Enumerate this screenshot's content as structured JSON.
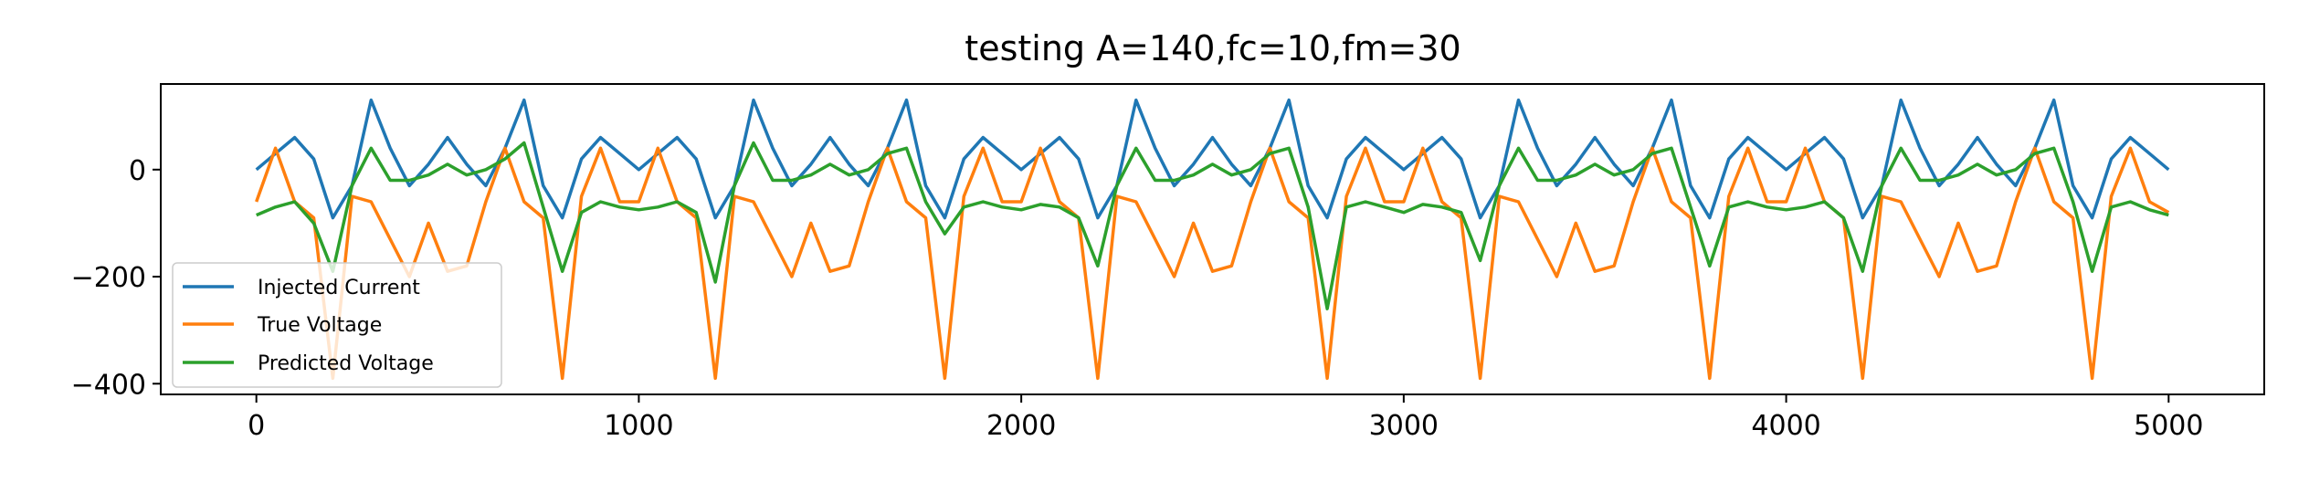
{
  "chart_data": {
    "type": "line",
    "title": "testing A=140,fc=10,fm=30",
    "xlabel": "",
    "ylabel": "",
    "xlim": [
      -250,
      5250
    ],
    "ylim": [
      -420,
      160
    ],
    "xticks": [
      0,
      1000,
      2000,
      3000,
      4000,
      5000
    ],
    "xtick_labels": [
      "0",
      "1000",
      "2000",
      "3000",
      "4000",
      "5000"
    ],
    "yticks": [
      0,
      -200,
      -400
    ],
    "ytick_labels": [
      "0",
      "−200",
      "−400"
    ],
    "grid": false,
    "legend_position": "lower-left",
    "series": [
      {
        "name": "Injected Current",
        "color": "#1f77b4",
        "x": [
          0,
          50,
          100,
          150,
          200,
          250,
          300,
          350,
          400,
          450,
          500,
          550,
          600,
          650,
          700,
          750,
          800,
          850,
          900,
          950,
          1000,
          1050,
          1100,
          1150,
          1200,
          1250,
          1300,
          1350,
          1400,
          1450,
          1500,
          1550,
          1600,
          1650,
          1700,
          1750,
          1800,
          1850,
          1900,
          1950,
          2000,
          2050,
          2100,
          2150,
          2200,
          2250,
          2300,
          2350,
          2400,
          2450,
          2500,
          2550,
          2600,
          2650,
          2700,
          2750,
          2800,
          2850,
          2900,
          2950,
          3000,
          3050,
          3100,
          3150,
          3200,
          3250,
          3300,
          3350,
          3400,
          3450,
          3500,
          3550,
          3600,
          3650,
          3700,
          3750,
          3800,
          3850,
          3900,
          3950,
          4000,
          4050,
          4100,
          4150,
          4200,
          4250,
          4300,
          4350,
          4400,
          4450,
          4500,
          4550,
          4600,
          4650,
          4700,
          4750,
          4800,
          4850,
          4900,
          4950,
          5000
        ],
        "y": [
          0,
          30,
          60,
          20,
          -90,
          -30,
          130,
          40,
          -30,
          10,
          60,
          10,
          -30,
          40,
          130,
          -30,
          -90,
          20,
          60,
          30,
          0,
          30,
          60,
          20,
          -90,
          -30,
          130,
          40,
          -30,
          10,
          60,
          10,
          -30,
          40,
          130,
          -30,
          -90,
          20,
          60,
          30,
          0,
          30,
          60,
          20,
          -90,
          -30,
          130,
          40,
          -30,
          10,
          60,
          10,
          -30,
          40,
          130,
          -30,
          -90,
          20,
          60,
          30,
          0,
          30,
          60,
          20,
          -90,
          -30,
          130,
          40,
          -30,
          10,
          60,
          10,
          -30,
          40,
          130,
          -30,
          -90,
          20,
          60,
          30,
          0,
          30,
          60,
          20,
          -90,
          -30,
          130,
          40,
          -30,
          10,
          60,
          10,
          -30,
          40,
          130,
          -30,
          -90,
          20,
          60,
          30,
          0
        ]
      },
      {
        "name": "True Voltage",
        "color": "#ff7f0e",
        "x": [
          0,
          50,
          100,
          150,
          200,
          250,
          300,
          350,
          400,
          450,
          500,
          550,
          600,
          650,
          700,
          750,
          800,
          850,
          900,
          950,
          1000,
          1050,
          1100,
          1150,
          1200,
          1250,
          1300,
          1350,
          1400,
          1450,
          1500,
          1550,
          1600,
          1650,
          1700,
          1750,
          1800,
          1850,
          1900,
          1950,
          2000,
          2050,
          2100,
          2150,
          2200,
          2250,
          2300,
          2350,
          2400,
          2450,
          2500,
          2550,
          2600,
          2650,
          2700,
          2750,
          2800,
          2850,
          2900,
          2950,
          3000,
          3050,
          3100,
          3150,
          3200,
          3250,
          3300,
          3350,
          3400,
          3450,
          3500,
          3550,
          3600,
          3650,
          3700,
          3750,
          3800,
          3850,
          3900,
          3950,
          4000,
          4050,
          4100,
          4150,
          4200,
          4250,
          4300,
          4350,
          4400,
          4450,
          4500,
          4550,
          4600,
          4650,
          4700,
          4750,
          4800,
          4850,
          4900,
          4950,
          5000
        ],
        "y": [
          -60,
          40,
          -60,
          -90,
          -390,
          -50,
          -60,
          -130,
          -200,
          -100,
          -190,
          -180,
          -60,
          40,
          -60,
          -90,
          -390,
          -50,
          40,
          -60,
          -60,
          40,
          -60,
          -90,
          -390,
          -50,
          -60,
          -130,
          -200,
          -100,
          -190,
          -180,
          -60,
          40,
          -60,
          -90,
          -390,
          -50,
          40,
          -60,
          -60,
          40,
          -60,
          -90,
          -390,
          -50,
          -60,
          -130,
          -200,
          -100,
          -190,
          -180,
          -60,
          40,
          -60,
          -90,
          -390,
          -50,
          40,
          -60,
          -60,
          40,
          -60,
          -90,
          -390,
          -50,
          -60,
          -130,
          -200,
          -100,
          -190,
          -180,
          -60,
          40,
          -60,
          -90,
          -390,
          -50,
          40,
          -60,
          -60,
          40,
          -60,
          -90,
          -390,
          -50,
          -60,
          -130,
          -200,
          -100,
          -190,
          -180,
          -60,
          40,
          -60,
          -90,
          -390,
          -50,
          40,
          -60,
          -80
        ]
      },
      {
        "name": "Predicted Voltage",
        "color": "#2ca02c",
        "x": [
          0,
          50,
          100,
          150,
          200,
          250,
          300,
          350,
          400,
          450,
          500,
          550,
          600,
          650,
          700,
          750,
          800,
          850,
          900,
          950,
          1000,
          1050,
          1100,
          1150,
          1200,
          1250,
          1300,
          1350,
          1400,
          1450,
          1500,
          1550,
          1600,
          1650,
          1700,
          1750,
          1800,
          1850,
          1900,
          1950,
          2000,
          2050,
          2100,
          2150,
          2200,
          2250,
          2300,
          2350,
          2400,
          2450,
          2500,
          2550,
          2600,
          2650,
          2700,
          2750,
          2800,
          2850,
          2900,
          2950,
          3000,
          3050,
          3100,
          3150,
          3200,
          3250,
          3300,
          3350,
          3400,
          3450,
          3500,
          3550,
          3600,
          3650,
          3700,
          3750,
          3800,
          3850,
          3900,
          3950,
          4000,
          4050,
          4100,
          4150,
          4200,
          4250,
          4300,
          4350,
          4400,
          4450,
          4500,
          4550,
          4600,
          4650,
          4700,
          4750,
          4800,
          4850,
          4900,
          4950,
          5000
        ],
        "y": [
          -85,
          -70,
          -60,
          -100,
          -190,
          -30,
          40,
          -20,
          -20,
          -10,
          10,
          -10,
          0,
          20,
          50,
          -70,
          -190,
          -80,
          -60,
          -70,
          -75,
          -70,
          -60,
          -80,
          -210,
          -30,
          50,
          -20,
          -20,
          -10,
          10,
          -10,
          0,
          30,
          40,
          -60,
          -120,
          -70,
          -60,
          -70,
          -75,
          -65,
          -70,
          -90,
          -180,
          -30,
          40,
          -20,
          -20,
          -10,
          10,
          -10,
          0,
          30,
          40,
          -70,
          -260,
          -70,
          -60,
          -70,
          -80,
          -65,
          -70,
          -80,
          -170,
          -30,
          40,
          -20,
          -20,
          -10,
          10,
          -10,
          0,
          30,
          40,
          -70,
          -180,
          -70,
          -60,
          -70,
          -75,
          -70,
          -60,
          -90,
          -190,
          -30,
          40,
          -20,
          -20,
          -10,
          10,
          -10,
          0,
          30,
          40,
          -60,
          -190,
          -70,
          -60,
          -75,
          -85
        ]
      }
    ]
  }
}
